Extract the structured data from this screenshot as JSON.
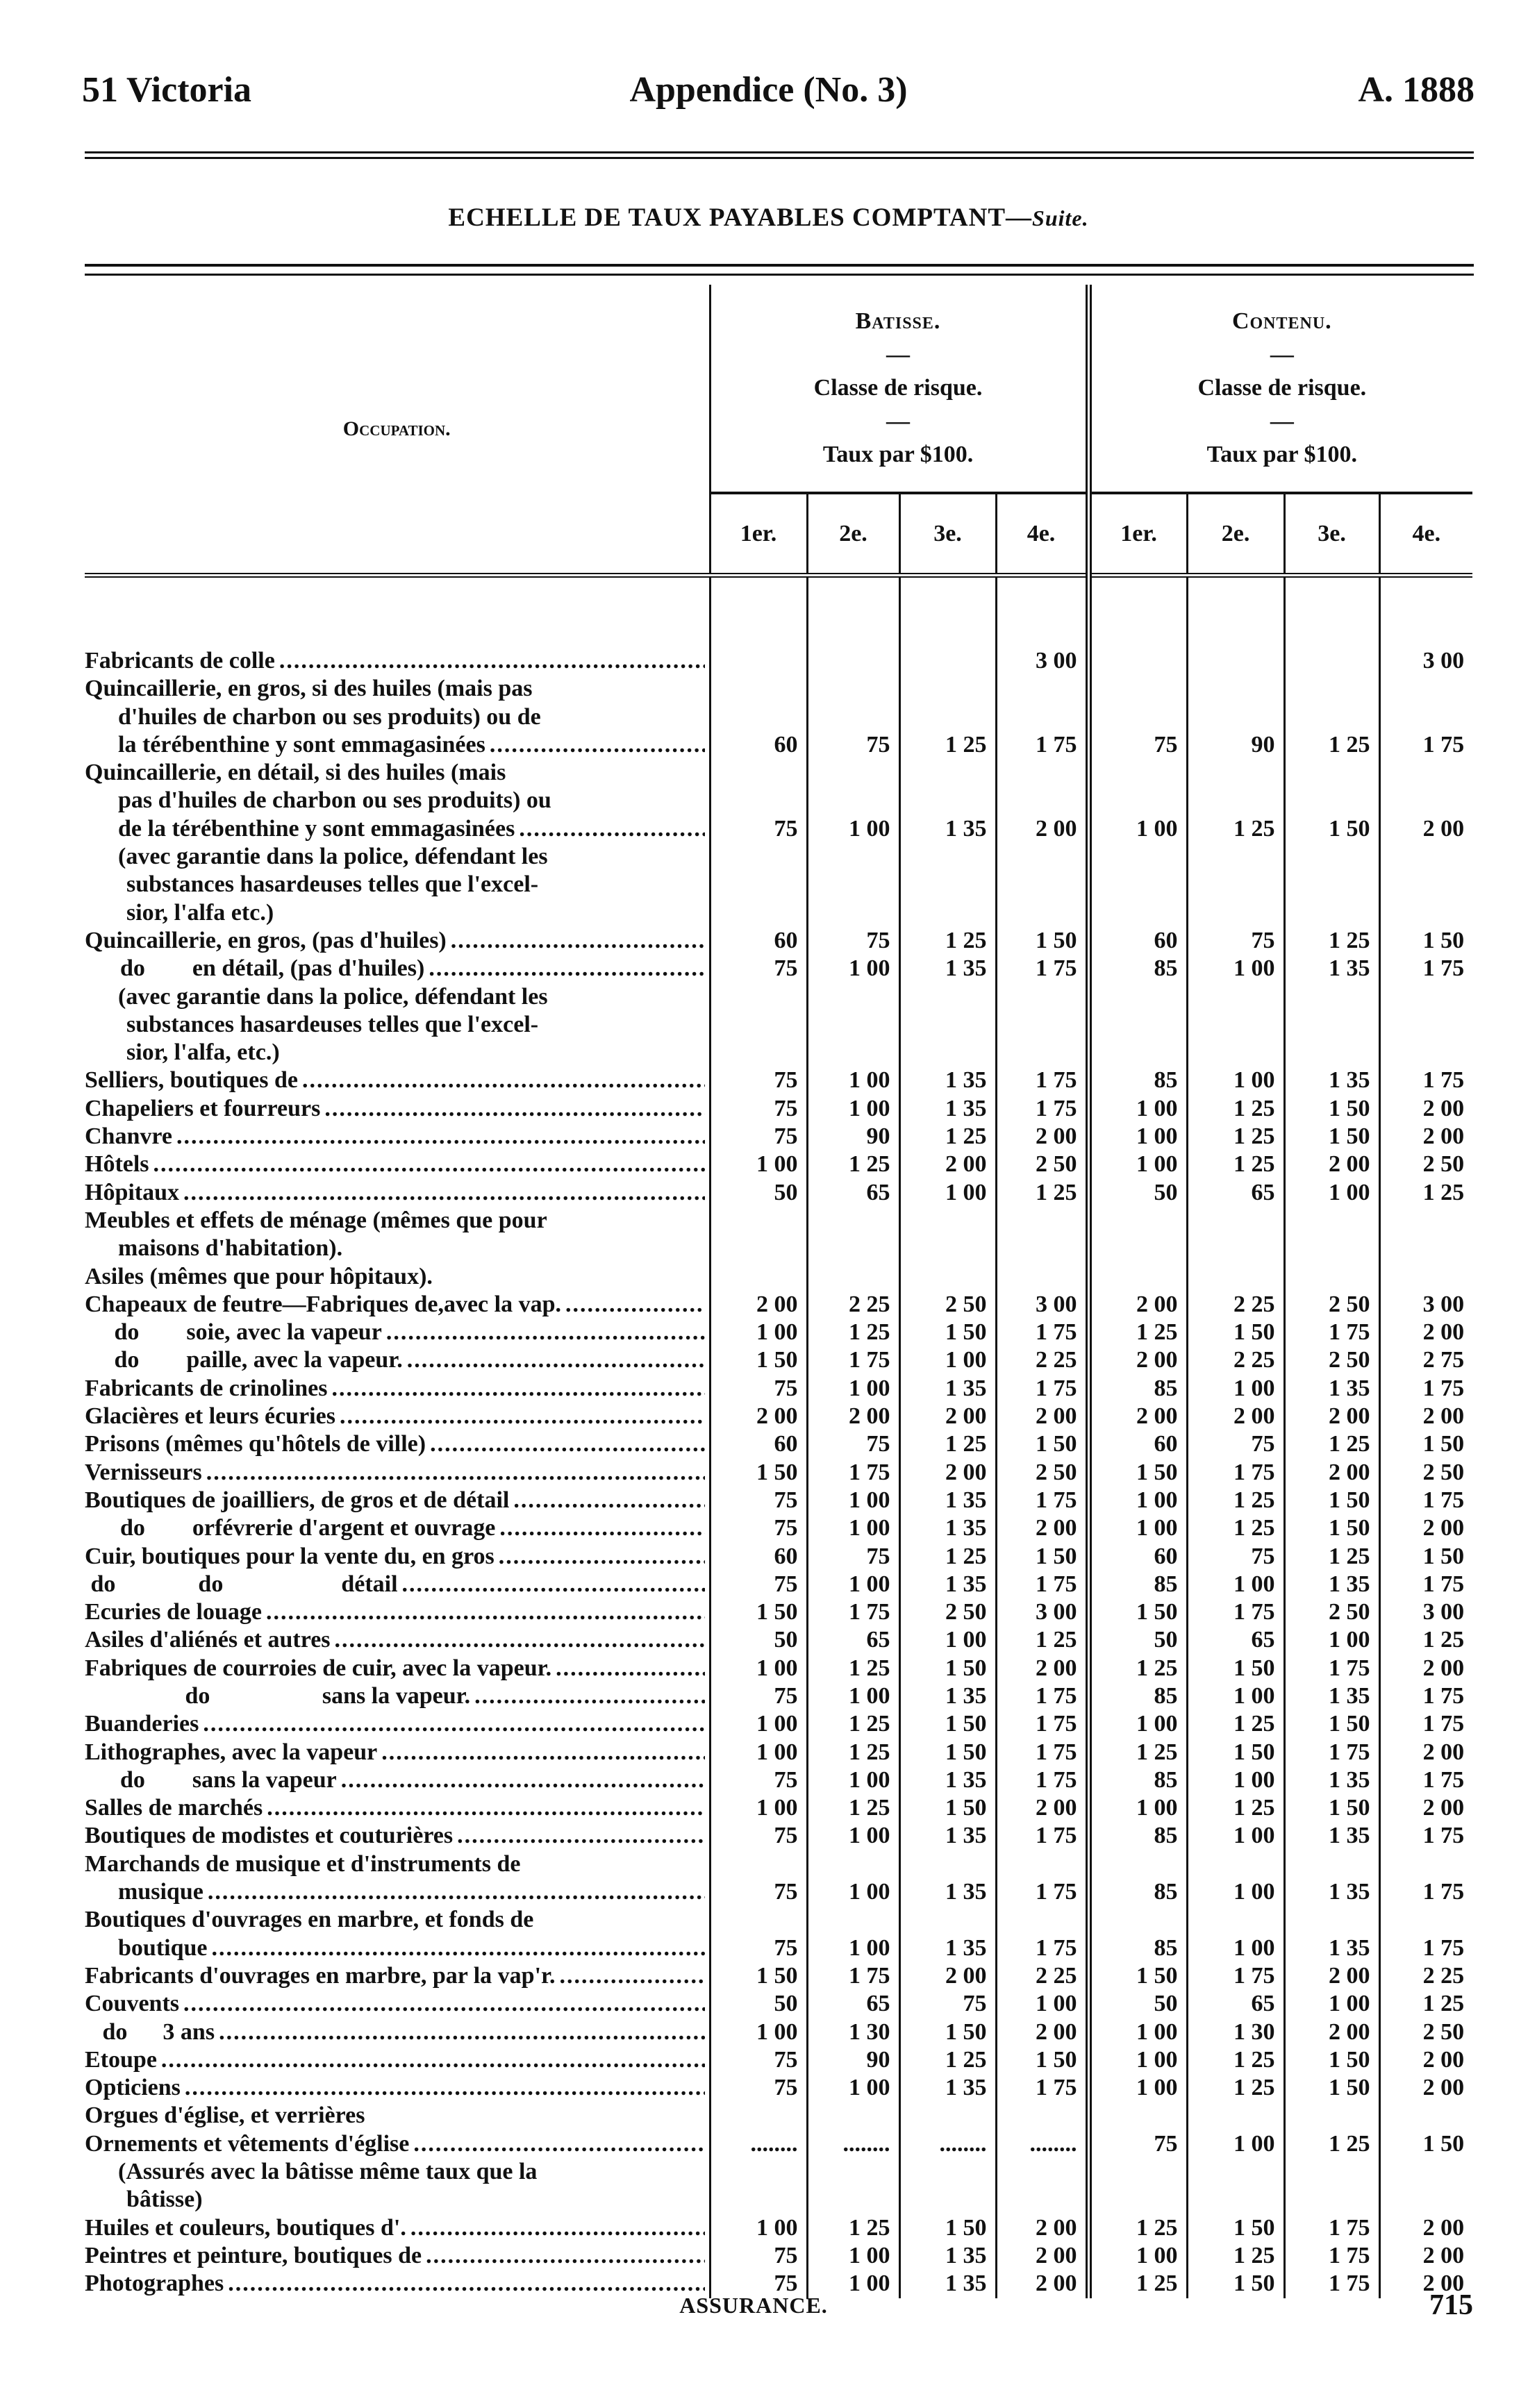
{
  "header": {
    "left": "51 Victoria",
    "center": "Appendice (No. 3)",
    "right": "A. 1888"
  },
  "title": {
    "main": "ECHELLE DE TAUX PAYABLES COMPTANT—",
    "suffix": "Suite."
  },
  "table": {
    "occupation_label": "Occupation.",
    "groups": [
      {
        "name": "Batisse.",
        "dash": "—",
        "classe": "Classe de risque.",
        "taux": "Taux par $100."
      },
      {
        "name": "Contenu.",
        "dash": "—",
        "classe": "Classe de risque.",
        "taux": "Taux par $100."
      }
    ],
    "columns": [
      "1er.",
      "2e.",
      "3e.",
      "4e.",
      "1er.",
      "2e.",
      "3e.",
      "4e."
    ],
    "rows": [
      {
        "lines": [
          "Fabricants de colle"
        ],
        "values": [
          "",
          "",
          "",
          "3 00",
          "",
          "",
          "",
          "3 00"
        ]
      },
      {
        "lines": [
          "Quincaillerie, en gros, si des huiles (mais pas",
          "d'huiles de charbon ou ses produits) ou de",
          "la térébenthine y sont emmagasinées"
        ],
        "values": [
          "60",
          "75",
          "1 25",
          "1 75",
          "75",
          "90",
          "1 25",
          "1 75"
        ]
      },
      {
        "lines": [
          "Quincaillerie, en détail, si des huiles (mais",
          "pas d'huiles de charbon ou ses produits) ou",
          "de la térébenthine y sont emmagasinées"
        ],
        "values": [
          "75",
          "1 00",
          "1 35",
          "2 00",
          "1 00",
          "1 25",
          "1 50",
          "2 00"
        ]
      },
      {
        "lines": [
          "(avec garantie dans la police, défendant les",
          "substances hasardeuses telles que l'excel-",
          "sior, l'alfa etc.)"
        ],
        "values": []
      },
      {
        "lines": [
          "Quincaillerie, en gros, (pas d'huiles)"
        ],
        "values": [
          "60",
          "75",
          "1 25",
          "1 50",
          "60",
          "75",
          "1 25",
          "1 50"
        ]
      },
      {
        "lines": [
          "      do        en détail, (pas d'huiles)"
        ],
        "values": [
          "75",
          "1 00",
          "1 35",
          "1 75",
          "85",
          "1 00",
          "1 35",
          "1 75"
        ]
      },
      {
        "lines": [
          "(avec garantie dans la police, défendant les",
          "substances hasardeuses telles que l'excel-",
          "sior, l'alfa, etc.)"
        ],
        "values": []
      },
      {
        "lines": [
          "Selliers, boutiques de"
        ],
        "values": [
          "75",
          "1 00",
          "1 35",
          "1 75",
          "85",
          "1 00",
          "1 35",
          "1 75"
        ]
      },
      {
        "lines": [
          "Chapeliers et fourreurs"
        ],
        "values": [
          "75",
          "1 00",
          "1 35",
          "1 75",
          "1 00",
          "1 25",
          "1 50",
          "2 00"
        ]
      },
      {
        "lines": [
          "Chanvre"
        ],
        "values": [
          "75",
          "90",
          "1 25",
          "2 00",
          "1 00",
          "1 25",
          "1 50",
          "2 00"
        ]
      },
      {
        "lines": [
          "Hôtels"
        ],
        "values": [
          "1 00",
          "1 25",
          "2 00",
          "2 50",
          "1 00",
          "1 25",
          "2 00",
          "2 50"
        ]
      },
      {
        "lines": [
          "Hôpitaux"
        ],
        "values": [
          "50",
          "65",
          "1 00",
          "1 25",
          "50",
          "65",
          "1 00",
          "1 25"
        ]
      },
      {
        "lines": [
          "Meubles et effets de ménage (mêmes que pour",
          "maisons d'habitation)."
        ],
        "values": []
      },
      {
        "lines": [
          "Asiles (mêmes que pour hôpitaux)."
        ],
        "values": []
      },
      {
        "lines": [
          "Chapeaux de feutre—Fabriques de,avec la vap."
        ],
        "values": [
          "2 00",
          "2 25",
          "2 50",
          "3 00",
          "2 00",
          "2 25",
          "2 50",
          "3 00"
        ]
      },
      {
        "lines": [
          "     do        soie, avec la vapeur"
        ],
        "values": [
          "1 00",
          "1 25",
          "1 50",
          "1 75",
          "1 25",
          "1 50",
          "1 75",
          "2 00"
        ]
      },
      {
        "lines": [
          "     do        paille, avec la vapeur."
        ],
        "values": [
          "1 50",
          "1 75",
          "1 00",
          "2 25",
          "2 00",
          "2 25",
          "2 50",
          "2 75"
        ]
      },
      {
        "lines": [
          "Fabricants de crinolines"
        ],
        "values": [
          "75",
          "1 00",
          "1 35",
          "1 75",
          "85",
          "1 00",
          "1 35",
          "1 75"
        ]
      },
      {
        "lines": [
          "Glacières et leurs écuries"
        ],
        "values": [
          "2 00",
          "2 00",
          "2 00",
          "2 00",
          "2 00",
          "2 00",
          "2 00",
          "2 00"
        ]
      },
      {
        "lines": [
          "Prisons (mêmes qu'hôtels de ville)"
        ],
        "values": [
          "60",
          "75",
          "1 25",
          "1 50",
          "60",
          "75",
          "1 25",
          "1 50"
        ]
      },
      {
        "lines": [
          "Vernisseurs"
        ],
        "values": [
          "1 50",
          "1 75",
          "2 00",
          "2 50",
          "1 50",
          "1 75",
          "2 00",
          "2 50"
        ]
      },
      {
        "lines": [
          "Boutiques de joailliers, de gros et de détail"
        ],
        "values": [
          "75",
          "1 00",
          "1 35",
          "1 75",
          "1 00",
          "1 25",
          "1 50",
          "1 75"
        ]
      },
      {
        "lines": [
          "      do        orfévrerie d'argent et ouvrage"
        ],
        "values": [
          "75",
          "1 00",
          "1 35",
          "2 00",
          "1 00",
          "1 25",
          "1 50",
          "2 00"
        ]
      },
      {
        "lines": [
          "Cuir, boutiques pour la vente du, en gros"
        ],
        "values": [
          "60",
          "75",
          "1 25",
          "1 50",
          "60",
          "75",
          "1 25",
          "1 50"
        ]
      },
      {
        "lines": [
          " do              do                    détail"
        ],
        "values": [
          "75",
          "1 00",
          "1 35",
          "1 75",
          "85",
          "1 00",
          "1 35",
          "1 75"
        ]
      },
      {
        "lines": [
          "Ecuries de louage"
        ],
        "values": [
          "1 50",
          "1 75",
          "2 50",
          "3 00",
          "1 50",
          "1 75",
          "2 50",
          "3 00"
        ]
      },
      {
        "lines": [
          "Asiles d'aliénés et autres"
        ],
        "values": [
          "50",
          "65",
          "1 00",
          "1 25",
          "50",
          "65",
          "1 00",
          "1 25"
        ]
      },
      {
        "lines": [
          "Fabriques de courroies de cuir, avec la vapeur."
        ],
        "values": [
          "1 00",
          "1 25",
          "1 50",
          "2 00",
          "1 25",
          "1 50",
          "1 75",
          "2 00"
        ]
      },
      {
        "lines": [
          "                 do                   sans la vapeur."
        ],
        "values": [
          "75",
          "1 00",
          "1 35",
          "1 75",
          "85",
          "1 00",
          "1 35",
          "1 75"
        ]
      },
      {
        "lines": [
          "Buanderies"
        ],
        "values": [
          "1 00",
          "1 25",
          "1 50",
          "1 75",
          "1 00",
          "1 25",
          "1 50",
          "1 75"
        ]
      },
      {
        "lines": [
          "Lithographes, avec la vapeur"
        ],
        "values": [
          "1 00",
          "1 25",
          "1 50",
          "1 75",
          "1 25",
          "1 50",
          "1 75",
          "2 00"
        ]
      },
      {
        "lines": [
          "      do        sans la vapeur"
        ],
        "values": [
          "75",
          "1 00",
          "1 35",
          "1 75",
          "85",
          "1 00",
          "1 35",
          "1 75"
        ]
      },
      {
        "lines": [
          "Salles de marchés"
        ],
        "values": [
          "1 00",
          "1 25",
          "1 50",
          "2 00",
          "1 00",
          "1 25",
          "1 50",
          "2 00"
        ]
      },
      {
        "lines": [
          "Boutiques de modistes et couturières"
        ],
        "values": [
          "75",
          "1 00",
          "1 35",
          "1 75",
          "85",
          "1 00",
          "1 35",
          "1 75"
        ]
      },
      {
        "lines": [
          "Marchands de musique et d'instruments de",
          "musique"
        ],
        "values": [
          "75",
          "1 00",
          "1 35",
          "1 75",
          "85",
          "1 00",
          "1 35",
          "1 75"
        ]
      },
      {
        "lines": [
          "Boutiques d'ouvrages en marbre, et fonds de",
          "boutique"
        ],
        "values": [
          "75",
          "1 00",
          "1 35",
          "1 75",
          "85",
          "1 00",
          "1 35",
          "1 75"
        ]
      },
      {
        "lines": [
          "Fabricants d'ouvrages en marbre, par la vap'r."
        ],
        "values": [
          "1 50",
          "1 75",
          "2 00",
          "2 25",
          "1 50",
          "1 75",
          "2 00",
          "2 25"
        ]
      },
      {
        "lines": [
          "Couvents"
        ],
        "values": [
          "50",
          "65",
          "75",
          "1 00",
          "50",
          "65",
          "1 00",
          "1 25"
        ]
      },
      {
        "lines": [
          "   do      3 ans"
        ],
        "values": [
          "1 00",
          "1 30",
          "1 50",
          "2 00",
          "1 00",
          "1 30",
          "2 00",
          "2 50"
        ]
      },
      {
        "lines": [
          "Etoupe"
        ],
        "values": [
          "75",
          "90",
          "1 25",
          "1 50",
          "1 00",
          "1 25",
          "1 50",
          "2 00"
        ]
      },
      {
        "lines": [
          "Opticiens"
        ],
        "values": [
          "75",
          "1 00",
          "1 35",
          "1 75",
          "1 00",
          "1 25",
          "1 50",
          "2 00"
        ]
      },
      {
        "lines": [
          "Orgues d'église, et verrières"
        ],
        "values": []
      },
      {
        "lines": [
          "Ornements et vêtements d'église"
        ],
        "values": [
          "........",
          "........",
          "........",
          "........",
          "75",
          "1 00",
          "1 25",
          "1 50"
        ]
      },
      {
        "lines": [
          "(Assurés avec la bâtisse même taux que la",
          "bâtisse)"
        ],
        "values": []
      },
      {
        "lines": [
          "Huiles et couleurs, boutiques d'."
        ],
        "values": [
          "1 00",
          "1 25",
          "1 50",
          "2 00",
          "1 25",
          "1 50",
          "1 75",
          "2 00"
        ]
      },
      {
        "lines": [
          "Peintres et peinture, boutiques de"
        ],
        "values": [
          "75",
          "1 00",
          "1 35",
          "2 00",
          "1 00",
          "1 25",
          "1 75",
          "2 00"
        ]
      },
      {
        "lines": [
          "Photographes"
        ],
        "values": [
          "75",
          "1 00",
          "1 35",
          "2 00",
          "1 25",
          "1 50",
          "1 75",
          "2 00"
        ]
      }
    ]
  },
  "footer": {
    "catchword": "ASSURANCE.",
    "page_number": "715"
  }
}
